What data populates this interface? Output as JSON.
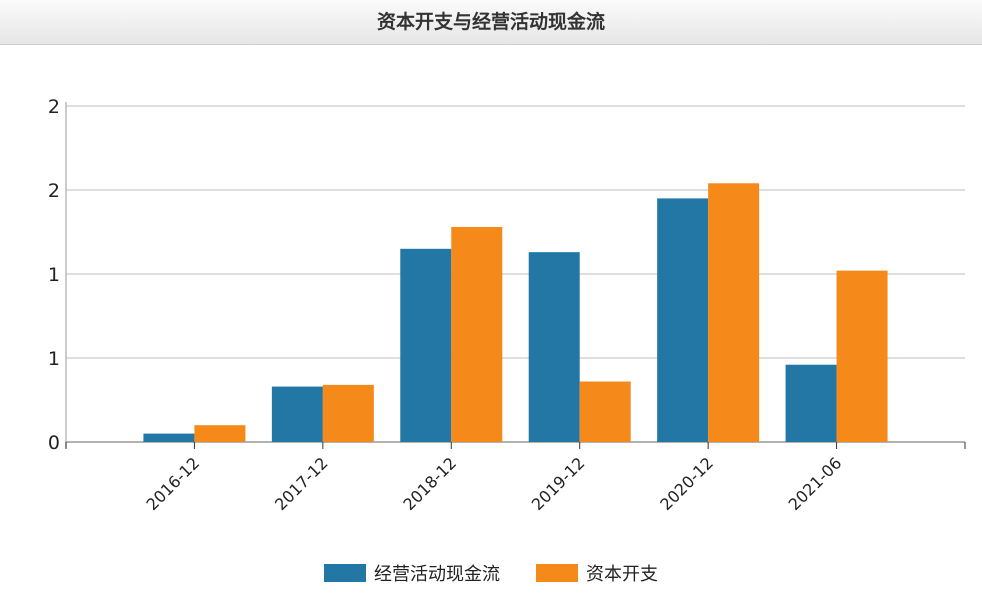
{
  "chart_data": {
    "type": "bar",
    "title": "资本开支与经营活动现金流",
    "categories": [
      "2016-12",
      "2017-12",
      "2018-12",
      "2019-12",
      "2020-12",
      "2021-06"
    ],
    "series": [
      {
        "name": "经营活动现金流",
        "color": "#2277a4",
        "values": [
          0.05,
          0.33,
          1.15,
          1.13,
          1.45,
          0.46
        ]
      },
      {
        "name": "资本开支",
        "color": "#f5891a",
        "values": [
          0.1,
          0.34,
          1.28,
          0.36,
          1.54,
          1.02
        ]
      }
    ],
    "yticks": [
      0,
      0.5,
      1,
      1.5,
      2
    ],
    "ytick_labels": [
      "0",
      "1",
      "1",
      "2",
      "2"
    ],
    "ylim": [
      0,
      2
    ],
    "grid": true,
    "legend": "bottom"
  }
}
